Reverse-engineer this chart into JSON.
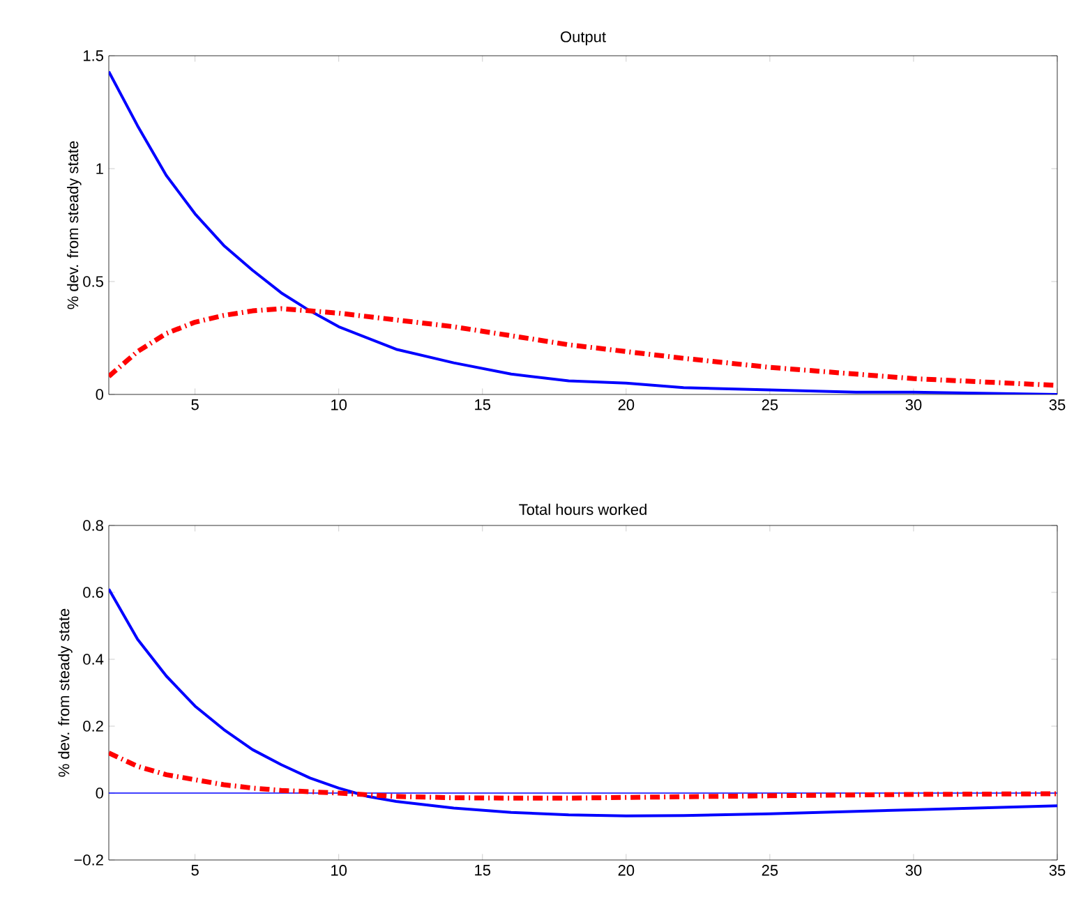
{
  "chart_data": [
    {
      "type": "line",
      "title": "Output",
      "ylabel": "% dev. from steady state",
      "x": [
        2,
        3,
        4,
        5,
        6,
        7,
        8,
        9,
        10,
        12,
        14,
        16,
        18,
        20,
        22,
        25,
        28,
        30,
        35
      ],
      "xlim": [
        2,
        35
      ],
      "xticks": [
        5,
        10,
        15,
        20,
        25,
        30,
        35
      ],
      "ylim": [
        0,
        1.5
      ],
      "yticks": [
        0,
        0.5,
        1,
        1.5
      ],
      "grid": false,
      "series": [
        {
          "color": "#0000ff",
          "line_style": "solid",
          "values": [
            1.43,
            1.19,
            0.97,
            0.8,
            0.66,
            0.55,
            0.45,
            0.37,
            0.3,
            0.2,
            0.14,
            0.09,
            0.06,
            0.05,
            0.03,
            0.02,
            0.01,
            0.01,
            0.0
          ]
        },
        {
          "color": "#ff0000",
          "line_style": "dashdot",
          "values": [
            0.08,
            0.19,
            0.27,
            0.32,
            0.35,
            0.37,
            0.38,
            0.37,
            0.36,
            0.33,
            0.3,
            0.26,
            0.22,
            0.19,
            0.16,
            0.12,
            0.09,
            0.07,
            0.04
          ]
        }
      ]
    },
    {
      "type": "line",
      "title": "Total hours worked",
      "ylabel": "% dev. from steady state",
      "x": [
        2,
        3,
        4,
        5,
        6,
        7,
        8,
        9,
        10,
        11,
        12,
        14,
        16,
        18,
        20,
        22,
        25,
        30,
        35
      ],
      "xlim": [
        2,
        35
      ],
      "xticks": [
        5,
        10,
        15,
        20,
        25,
        30,
        35
      ],
      "ylim": [
        -0.2,
        0.8
      ],
      "yticks": [
        {
          "value": -0.2,
          "label": "−0.2"
        },
        0,
        0.2,
        0.4,
        0.6,
        0.8
      ],
      "grid": false,
      "series": [
        {
          "color": "#0000ff",
          "line_style": "solid",
          "values": [
            0.61,
            0.46,
            0.35,
            0.26,
            0.19,
            0.13,
            0.085,
            0.045,
            0.015,
            -0.01,
            -0.025,
            -0.045,
            -0.058,
            -0.065,
            -0.068,
            -0.067,
            -0.062,
            -0.05,
            -0.038
          ]
        },
        {
          "color": "#ff0000",
          "line_style": "dashdot",
          "values": [
            0.12,
            0.08,
            0.055,
            0.04,
            0.025,
            0.015,
            0.008,
            0.004,
            0.0,
            -0.005,
            -0.01,
            -0.014,
            -0.015,
            -0.015,
            -0.013,
            -0.011,
            -0.008,
            -0.004,
            -0.002
          ]
        }
      ],
      "ref_lines": [
        {
          "axis": "y",
          "value": 0,
          "color": "#0000ff"
        }
      ]
    }
  ]
}
